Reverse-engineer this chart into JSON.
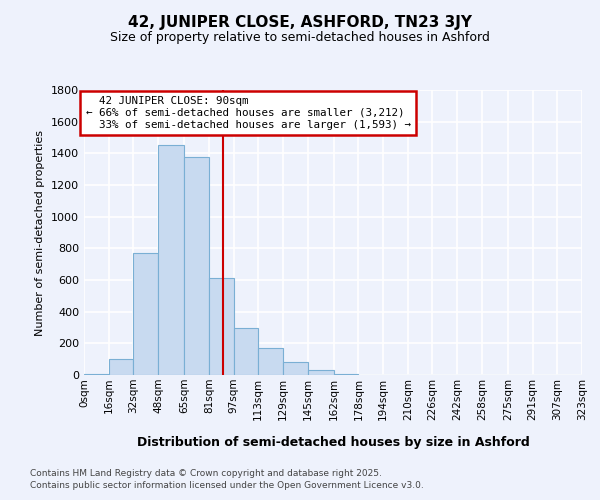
{
  "title_line1": "42, JUNIPER CLOSE, ASHFORD, TN23 3JY",
  "title_line2": "Size of property relative to semi-detached houses in Ashford",
  "xlabel": "Distribution of semi-detached houses by size in Ashford",
  "ylabel": "Number of semi-detached properties",
  "bin_labels": [
    "0sqm",
    "16sqm",
    "32sqm",
    "48sqm",
    "65sqm",
    "81sqm",
    "97sqm",
    "113sqm",
    "129sqm",
    "145sqm",
    "162sqm",
    "178sqm",
    "194sqm",
    "210sqm",
    "226sqm",
    "242sqm",
    "258sqm",
    "275sqm",
    "291sqm",
    "307sqm",
    "323sqm"
  ],
  "bin_edges": [
    0,
    16,
    32,
    48,
    65,
    81,
    97,
    113,
    129,
    145,
    162,
    178,
    194,
    210,
    226,
    242,
    258,
    275,
    291,
    307,
    323
  ],
  "bar_heights": [
    5,
    100,
    770,
    1450,
    1380,
    610,
    295,
    170,
    85,
    30,
    5,
    0,
    0,
    0,
    0,
    0,
    0,
    0,
    0,
    0
  ],
  "bar_color": "#c8daf0",
  "bar_edge_color": "#7aafd4",
  "property_size": 90,
  "property_label": "42 JUNIPER CLOSE: 90sqm",
  "pct_smaller": 66,
  "n_smaller": 3212,
  "pct_larger": 33,
  "n_larger": 1593,
  "vline_color": "#cc0000",
  "ylim": [
    0,
    1800
  ],
  "yticks": [
    0,
    200,
    400,
    600,
    800,
    1000,
    1200,
    1400,
    1600,
    1800
  ],
  "background_color": "#eef2fc",
  "grid_color": "#ffffff",
  "footer_line1": "Contains HM Land Registry data © Crown copyright and database right 2025.",
  "footer_line2": "Contains public sector information licensed under the Open Government Licence v3.0."
}
